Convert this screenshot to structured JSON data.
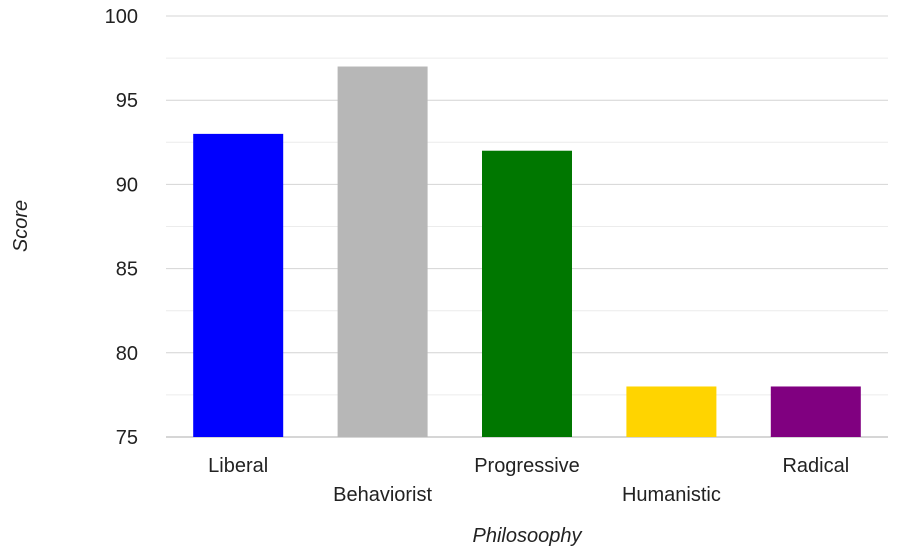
{
  "chart_data": {
    "type": "bar",
    "categories": [
      "Liberal",
      "Behaviorist",
      "Progressive",
      "Humanistic",
      "Radical"
    ],
    "values": [
      93,
      97,
      92,
      78,
      78
    ],
    "colors": [
      "#0000ff",
      "#b7b7b7",
      "#007700",
      "#ffd400",
      "#800080"
    ],
    "xlabel": "Philosoophy",
    "ylabel": "Score",
    "ylim": [
      75,
      100
    ],
    "yticks": [
      75,
      80,
      85,
      90,
      95,
      100
    ],
    "grid": true,
    "legend": false
  }
}
